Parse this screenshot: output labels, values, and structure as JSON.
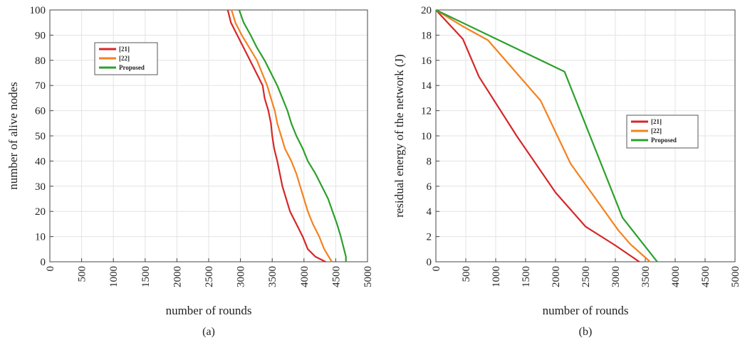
{
  "chart_data": [
    {
      "type": "line",
      "caption": "(a)",
      "xlabel": "number of rounds",
      "ylabel": "number of alive nodes",
      "xlim": [
        0,
        5000
      ],
      "ylim": [
        0,
        100
      ],
      "x_ticks": [
        "0",
        "500",
        "1000",
        "1500",
        "2000",
        "2500",
        "3000",
        "3500",
        "4000",
        "4500",
        "5000"
      ],
      "y_ticks": [
        "0",
        "10",
        "20",
        "30",
        "40",
        "50",
        "60",
        "70",
        "80",
        "90",
        "100"
      ],
      "grid": true,
      "legend_position": "top-left",
      "series": [
        {
          "name": "[21]",
          "color": "#d62728",
          "points": [
            [
              2800,
              100
            ],
            [
              2850,
              95
            ],
            [
              2950,
              90
            ],
            [
              3050,
              85
            ],
            [
              3150,
              80
            ],
            [
              3250,
              75
            ],
            [
              3350,
              70
            ],
            [
              3380,
              65
            ],
            [
              3440,
              60
            ],
            [
              3480,
              55
            ],
            [
              3500,
              50
            ],
            [
              3530,
              45
            ],
            [
              3580,
              40
            ],
            [
              3620,
              35
            ],
            [
              3660,
              30
            ],
            [
              3720,
              25
            ],
            [
              3780,
              20
            ],
            [
              3880,
              15
            ],
            [
              3980,
              10
            ],
            [
              4060,
              5
            ],
            [
              4180,
              2
            ],
            [
              4340,
              0
            ]
          ]
        },
        {
          "name": "[22]",
          "color": "#f5821f",
          "points": [
            [
              2860,
              100
            ],
            [
              2920,
              95
            ],
            [
              3020,
              90
            ],
            [
              3140,
              85
            ],
            [
              3260,
              80
            ],
            [
              3340,
              75
            ],
            [
              3420,
              70
            ],
            [
              3480,
              65
            ],
            [
              3540,
              60
            ],
            [
              3580,
              55
            ],
            [
              3640,
              50
            ],
            [
              3700,
              45
            ],
            [
              3800,
              40
            ],
            [
              3880,
              35
            ],
            [
              3940,
              30
            ],
            [
              4000,
              25
            ],
            [
              4060,
              20
            ],
            [
              4140,
              15
            ],
            [
              4240,
              10
            ],
            [
              4320,
              5
            ],
            [
              4390,
              2
            ],
            [
              4440,
              0
            ]
          ]
        },
        {
          "name": "Proposed",
          "color": "#2ca02c",
          "points": [
            [
              2980,
              100
            ],
            [
              3050,
              95
            ],
            [
              3160,
              90
            ],
            [
              3260,
              85
            ],
            [
              3380,
              80
            ],
            [
              3480,
              75
            ],
            [
              3580,
              70
            ],
            [
              3660,
              65
            ],
            [
              3740,
              60
            ],
            [
              3800,
              55
            ],
            [
              3880,
              50
            ],
            [
              3980,
              45
            ],
            [
              4060,
              40
            ],
            [
              4180,
              35
            ],
            [
              4280,
              30
            ],
            [
              4380,
              25
            ],
            [
              4450,
              20
            ],
            [
              4520,
              15
            ],
            [
              4580,
              10
            ],
            [
              4630,
              5
            ],
            [
              4660,
              2
            ],
            [
              4660,
              0
            ]
          ]
        }
      ]
    },
    {
      "type": "line",
      "caption": "(b)",
      "xlabel": "number of rounds",
      "ylabel": "residual energy of the network (J)",
      "xlim": [
        0,
        5000
      ],
      "ylim": [
        0,
        20
      ],
      "x_ticks": [
        "0",
        "500",
        "1000",
        "1500",
        "2000",
        "2500",
        "3000",
        "3500",
        "4000",
        "4500",
        "5000"
      ],
      "y_ticks": [
        "0",
        "2",
        "4",
        "6",
        "8",
        "10",
        "12",
        "14",
        "16",
        "18",
        "20"
      ],
      "grid": true,
      "legend_position": "center-right",
      "series": [
        {
          "name": "[21]",
          "color": "#d62728",
          "points": [
            [
              0,
              20
            ],
            [
              450,
              17.7
            ],
            [
              720,
              14.7
            ],
            [
              1350,
              10
            ],
            [
              2000,
              5.5
            ],
            [
              2500,
              2.8
            ],
            [
              3000,
              1.3
            ],
            [
              3400,
              0
            ]
          ]
        },
        {
          "name": "[22]",
          "color": "#f5821f",
          "points": [
            [
              0,
              20
            ],
            [
              450,
              18.7
            ],
            [
              870,
              17.6
            ],
            [
              1750,
              12.8
            ],
            [
              2250,
              7.8
            ],
            [
              3050,
              2.5
            ],
            [
              3250,
              1.4
            ],
            [
              3580,
              0
            ]
          ]
        },
        {
          "name": "Proposed",
          "color": "#2ca02c",
          "points": [
            [
              0,
              20
            ],
            [
              2150,
              15.1
            ],
            [
              3120,
              3.5
            ],
            [
              3700,
              0
            ]
          ]
        }
      ]
    }
  ]
}
